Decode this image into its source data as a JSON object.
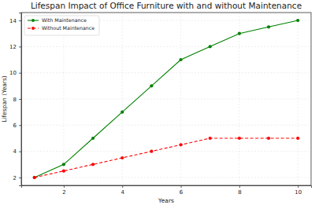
{
  "chart_data": {
    "type": "line",
    "title": "Lifespan Impact of Office Furniture with and without Maintenance",
    "x_label": "Years",
    "y_label": "Lifespan (Years)",
    "x": [
      1,
      2,
      3,
      4,
      5,
      6,
      7,
      8,
      9,
      10
    ],
    "series": [
      {
        "name": "With Maintenance",
        "color": "#008000",
        "marker": "circle",
        "line_style": "solid",
        "values": [
          2,
          3,
          5,
          7,
          9,
          11,
          12,
          13,
          13.5,
          14
        ]
      },
      {
        "name": "Without Maintenance",
        "color": "#ff0000",
        "marker": "circle",
        "line_style": "dashed",
        "values": [
          2,
          2.5,
          3,
          3.5,
          4,
          4.5,
          5,
          5,
          5,
          5
        ]
      }
    ],
    "xlim": [
      0.55,
      10.45
    ],
    "ylim": [
      1.4,
      14.6
    ],
    "xticks": [
      2,
      4,
      6,
      8,
      10
    ],
    "yticks": [
      2,
      4,
      6,
      8,
      10,
      12,
      14
    ],
    "grid": true,
    "legend": "upper left"
  }
}
